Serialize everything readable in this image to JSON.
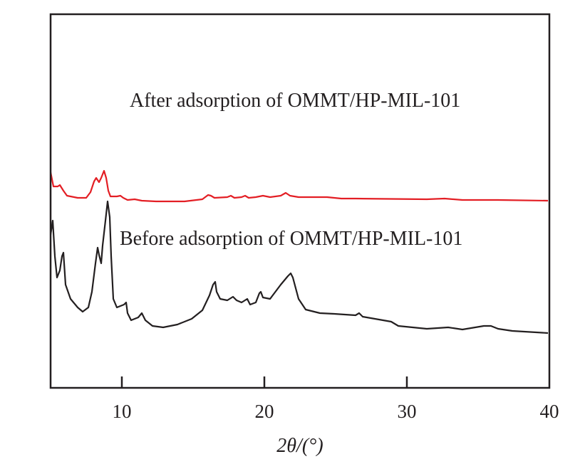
{
  "chart_data": {
    "type": "line",
    "title": "",
    "xlabel": "2θ/(°)",
    "ylabel": "",
    "xlim": [
      5,
      40
    ],
    "ylim": [
      0,
      525
    ],
    "y_units": "arbitrary intensity",
    "grid": false,
    "xticks": [
      10,
      20,
      30,
      40
    ],
    "annotations": [
      {
        "text": "After adsorption of OMMT/HP-MIL-101",
        "series": "after"
      },
      {
        "text": "Before adsorption of OMMT/HP-MIL-101",
        "series": "before"
      }
    ],
    "series": [
      {
        "name": "After adsorption of OMMT/HP-MIL-101",
        "color": "#e31e24",
        "x": [
          5,
          5.2,
          5.5,
          5.65,
          5.9,
          6.15,
          6.9,
          7.5,
          7.8,
          8.05,
          8.2,
          8.4,
          8.55,
          8.75,
          8.9,
          9.05,
          9.2,
          9.65,
          9.9,
          10.1,
          10.4,
          10.9,
          11.4,
          12.4,
          14.4,
          15.65,
          16.05,
          16.25,
          16.5,
          17.4,
          17.65,
          17.9,
          18.4,
          18.65,
          18.9,
          19.4,
          19.9,
          20.4,
          21.15,
          21.5,
          21.8,
          22.4,
          24.4,
          25.4,
          26.4,
          31.4,
          32.65,
          33.9,
          36.4,
          39.9
        ],
        "y": [
          303,
          283,
          283,
          285,
          277,
          270,
          267,
          267,
          275,
          290,
          295,
          289,
          295,
          305,
          295,
          277,
          269,
          269,
          270,
          267,
          264,
          265,
          263,
          262,
          262,
          265,
          271,
          270,
          267,
          268,
          270,
          267,
          268,
          270,
          267,
          268,
          270,
          268,
          270,
          274,
          270,
          268,
          268,
          266,
          266,
          265,
          266,
          264,
          264,
          263
        ]
      },
      {
        "name": "Before adsorption of OMMT/HP-MIL-101",
        "color": "#231f20",
        "x": [
          5,
          5.15,
          5.3,
          5.45,
          5.65,
          5.8,
          5.9,
          6.05,
          6.4,
          6.9,
          7.25,
          7.65,
          7.9,
          8.15,
          8.3,
          8.4,
          8.55,
          8.65,
          8.85,
          9.0,
          9.15,
          9.25,
          9.4,
          9.65,
          9.9,
          10.15,
          10.3,
          10.4,
          10.65,
          11.15,
          11.4,
          11.65,
          12.15,
          12.9,
          13.9,
          14.9,
          15.65,
          16.15,
          16.4,
          16.55,
          16.65,
          16.9,
          17.4,
          17.8,
          18.05,
          18.4,
          18.8,
          19.0,
          19.4,
          19.65,
          19.75,
          19.9,
          20.4,
          21.15,
          21.65,
          21.85,
          22.0,
          22.4,
          22.9,
          23.9,
          24.9,
          26.4,
          26.65,
          26.9,
          28.9,
          29.4,
          31.4,
          32.9,
          33.9,
          35.4,
          35.9,
          36.4,
          37.4,
          39.9
        ],
        "y": [
          215,
          235,
          185,
          155,
          165,
          185,
          190,
          145,
          125,
          113,
          107,
          113,
          135,
          175,
          197,
          187,
          175,
          200,
          235,
          262,
          240,
          185,
          125,
          113,
          115,
          117,
          120,
          105,
          95,
          99,
          105,
          95,
          87,
          85,
          89,
          97,
          109,
          130,
          145,
          149,
          135,
          125,
          123,
          128,
          123,
          120,
          125,
          117,
          120,
          133,
          135,
          127,
          125,
          145,
          157,
          161,
          155,
          125,
          110,
          105,
          104,
          102,
          105,
          100,
          93,
          87,
          83,
          85,
          82,
          87,
          87,
          83,
          80,
          77
        ]
      }
    ]
  }
}
